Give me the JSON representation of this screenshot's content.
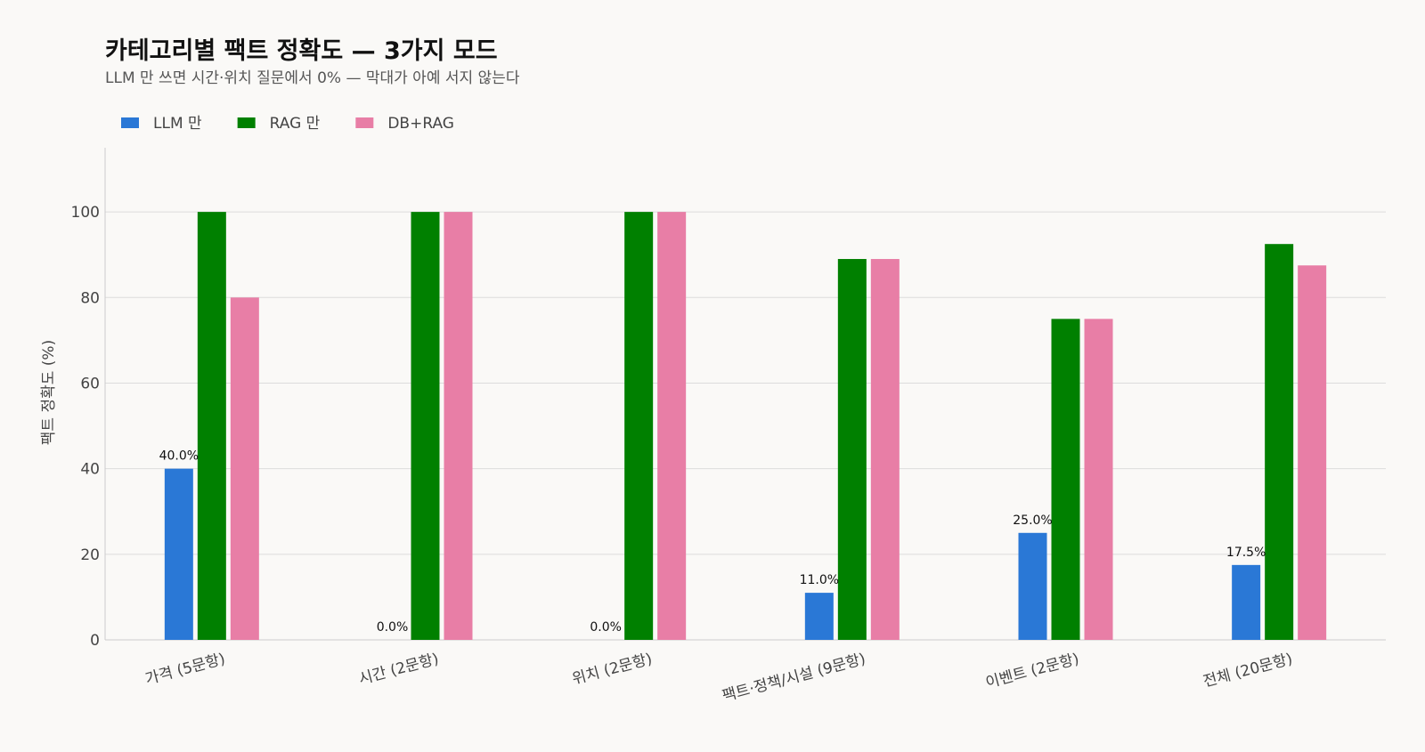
{
  "chart_data": {
    "type": "bar",
    "title": "카테고리별 팩트 정확도 — 3가지 모드",
    "subtitle": "LLM 만 쓰면 시간·위치 질문에서 0% — 막대가 아예 서지 않는다",
    "xlabel": "",
    "ylabel": "팩트 정확도 (%)",
    "ylim": [
      0,
      115
    ],
    "yticks": [
      0,
      20,
      40,
      60,
      80,
      100
    ],
    "grid": true,
    "legend_position": "top-left",
    "categories": [
      "가격 (5문항)",
      "시간 (2문항)",
      "위치 (2문항)",
      "팩트·정책/시설 (9문항)",
      "이벤트 (2문항)",
      "전체 (20문항)"
    ],
    "series": [
      {
        "name": "LLM 만",
        "color": "#2a78d6",
        "values": [
          40.0,
          0.0,
          0.0,
          11.0,
          25.0,
          17.5
        ],
        "labels": [
          "40.0%",
          "0.0%",
          "0.0%",
          "11.0%",
          "25.0%",
          "17.5%"
        ]
      },
      {
        "name": "RAG 만",
        "color": "#008000",
        "values": [
          100,
          100,
          100,
          89,
          75,
          92.5
        ]
      },
      {
        "name": "DB+RAG",
        "color": "#e87ea6",
        "values": [
          80,
          100,
          100,
          89,
          75,
          87.5
        ]
      }
    ]
  }
}
